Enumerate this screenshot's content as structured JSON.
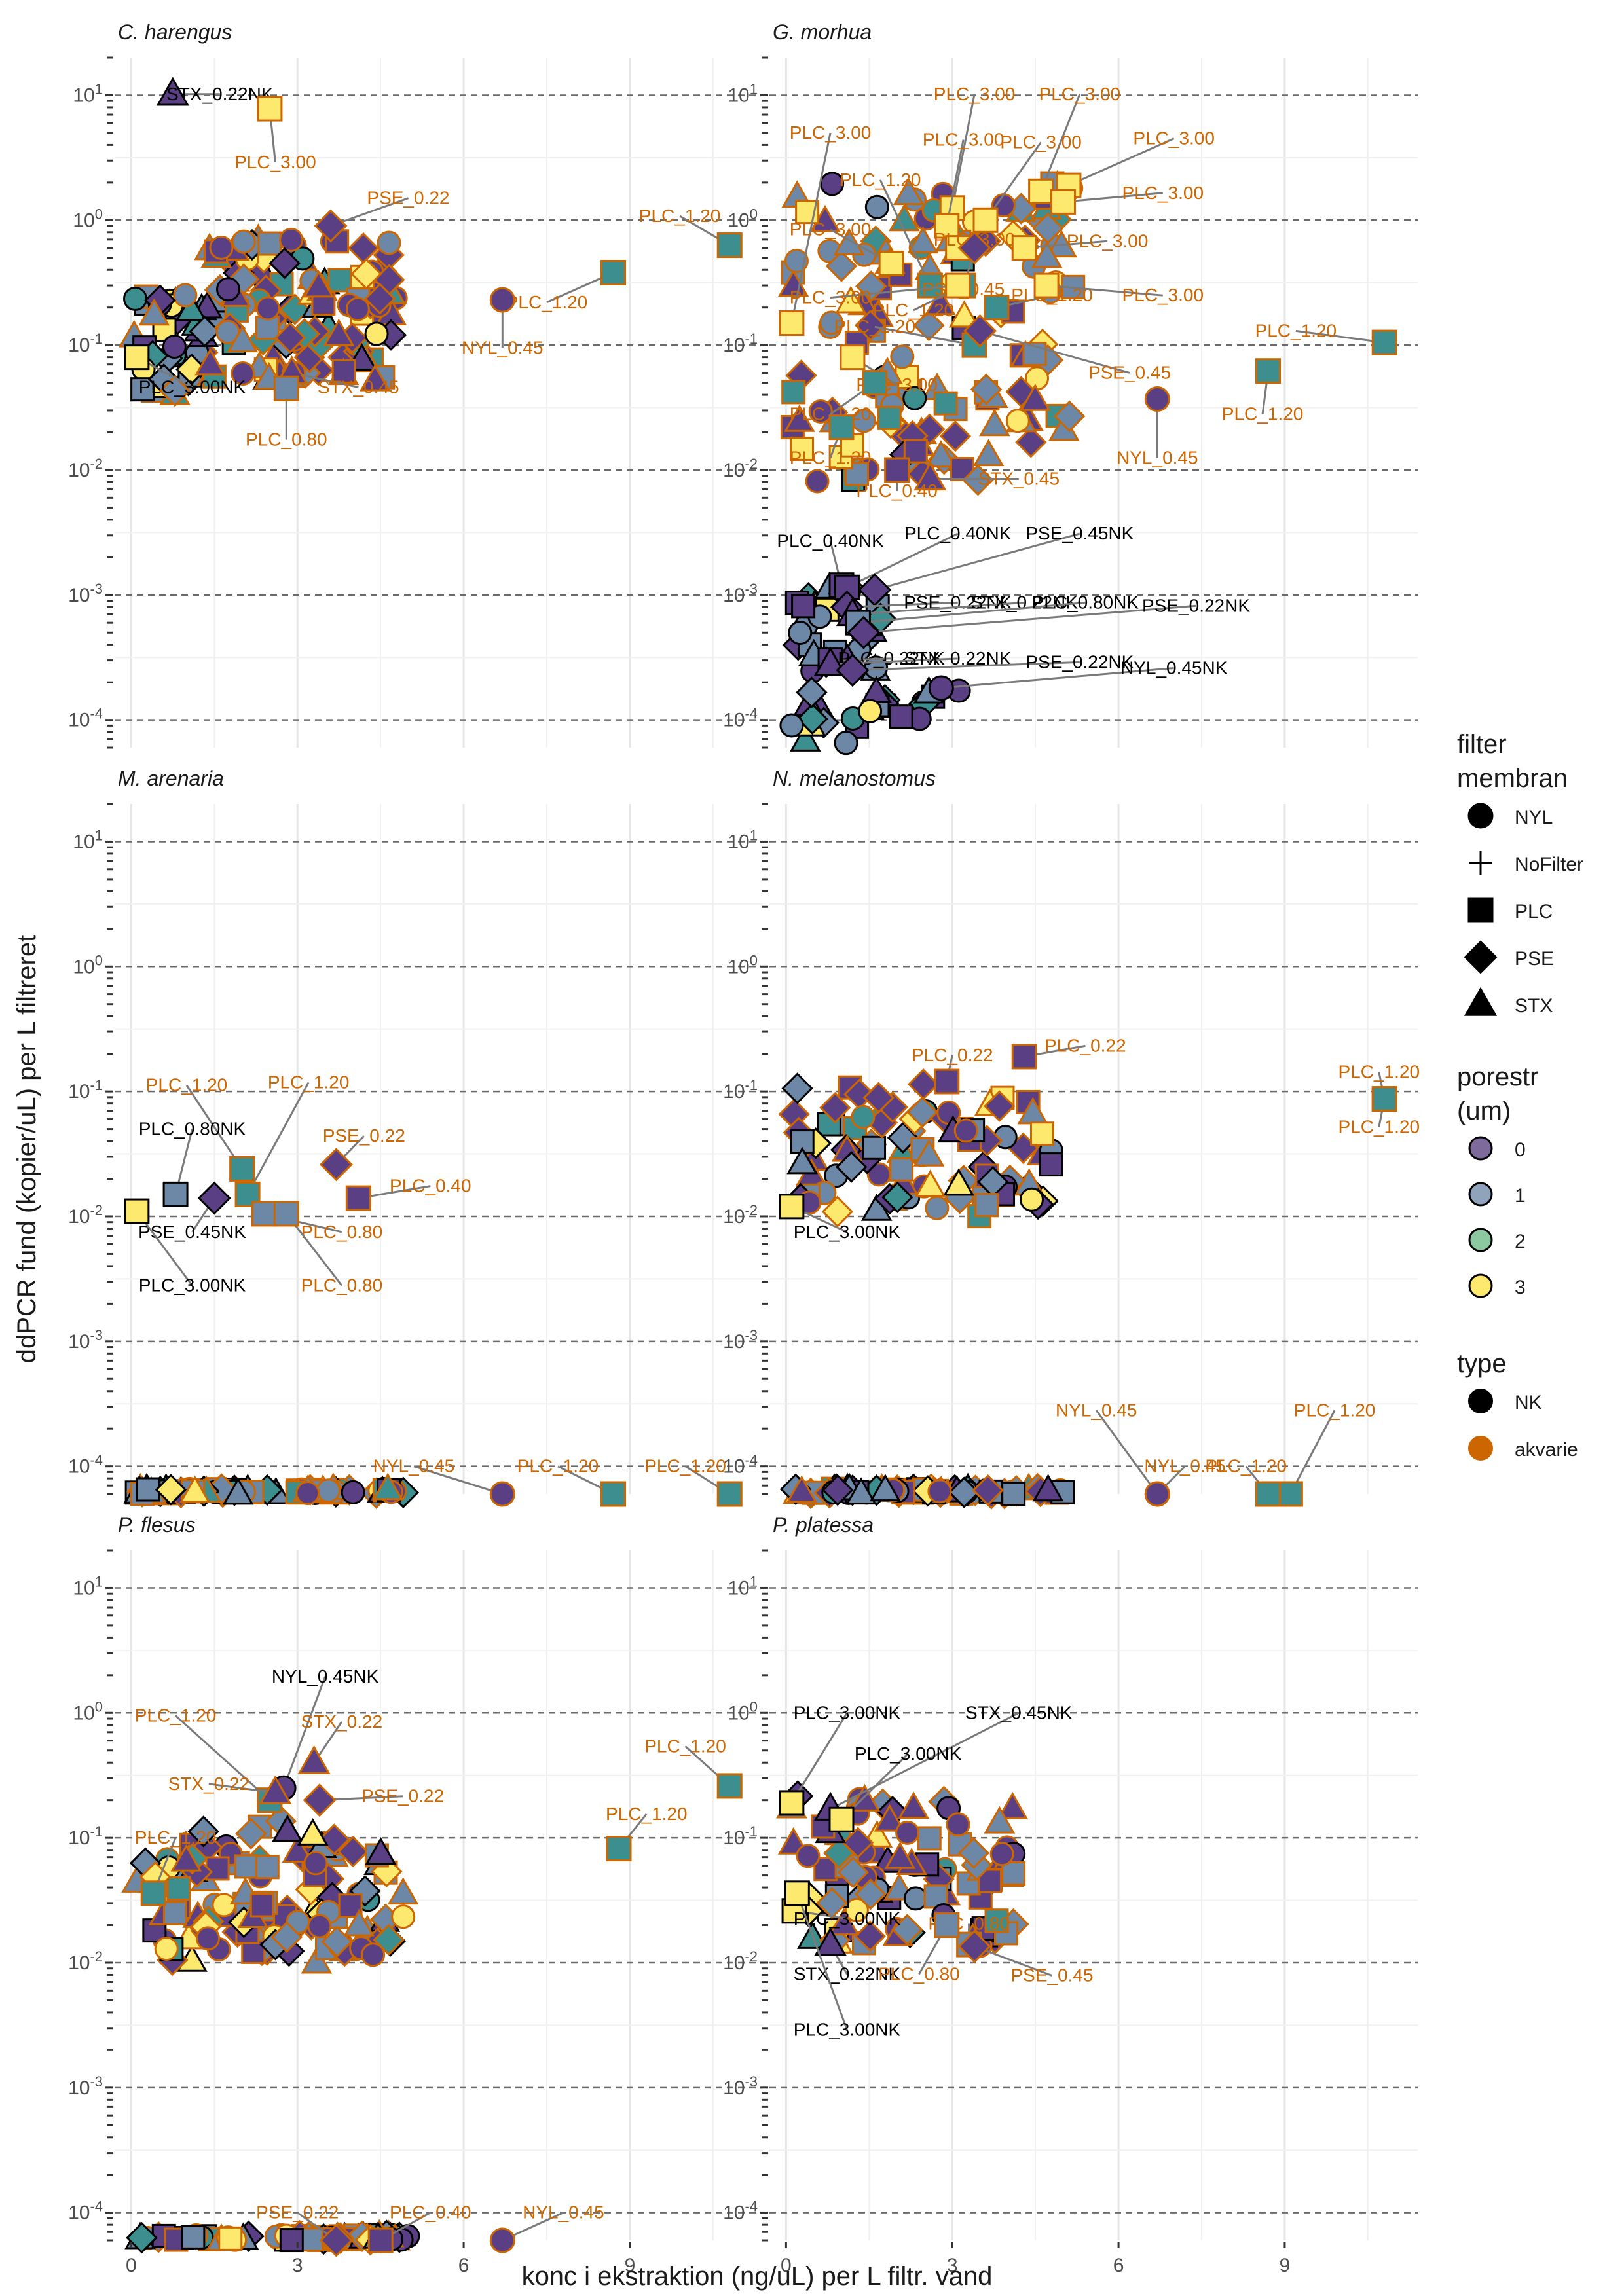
{
  "chart_data": {
    "type": "scatter",
    "xlabel": "konc i ekstraktion (ng/uL) per L filtr. vand",
    "ylabel": "ddPCR fund (kopier/uL) per L filtreret",
    "x_ticks": [
      "0",
      "3",
      "6",
      "9"
    ],
    "x_tick_values": [
      0,
      3,
      6,
      9
    ],
    "xlim": [
      -0.3,
      11.4
    ],
    "y_scale": "log10",
    "ylim": [
      6e-05,
      20
    ],
    "y_ticks": [
      {
        "value": 0.0001,
        "base": "10",
        "exp": "-4"
      },
      {
        "value": 0.001,
        "base": "10",
        "exp": "-3"
      },
      {
        "value": 0.01,
        "base": "10",
        "exp": "-2"
      },
      {
        "value": 0.1,
        "base": "10",
        "exp": "-1"
      },
      {
        "value": 1,
        "base": "10",
        "exp": "0"
      },
      {
        "value": 10,
        "base": "10",
        "exp": "1"
      }
    ],
    "reference_lines_y": [
      0.0001,
      0.001,
      0.01,
      0.1,
      1,
      10
    ],
    "grid": true,
    "legend_position": "right",
    "legend": {
      "shape": {
        "title_lines": [
          "filter",
          "membran"
        ],
        "entries": [
          {
            "label": "NYL",
            "shape": "circle"
          },
          {
            "label": "NoFilter",
            "shape": "plus"
          },
          {
            "label": "PLC",
            "shape": "square"
          },
          {
            "label": "PSE",
            "shape": "diamond"
          },
          {
            "label": "STX",
            "shape": "triangle"
          }
        ]
      },
      "fill": {
        "title_lines": [
          "porestr",
          "(um)"
        ],
        "entries": [
          {
            "label": "0",
            "color": "#7e6b9c"
          },
          {
            "label": "1",
            "color": "#8fa3bd"
          },
          {
            "label": "2",
            "color": "#8cc9a1"
          },
          {
            "label": "3",
            "color": "#fde96e"
          }
        ]
      },
      "outline": {
        "title_lines": [
          "type"
        ],
        "entries": [
          {
            "label": "NK",
            "color": "#000000"
          },
          {
            "label": "akvarie",
            "color": "#cc6600"
          }
        ]
      }
    },
    "colors": {
      "NK": "#000000",
      "akvarie": "#cc6600",
      "fill_0": "#5b3f84",
      "fill_1": "#6d87a6",
      "fill_2": "#3d8f8f",
      "fill_3": "#fde96e"
    },
    "facets": [
      {
        "title": "C. harengus",
        "labels": [
          {
            "text": "STX_0.22NK",
            "type": "NK",
            "x": 0.75,
            "y": 10.2,
            "lx": 1.6,
            "ly": 10.2
          },
          {
            "text": "PLC_3.00",
            "type": "akvarie",
            "x": 2.5,
            "y": 7.8,
            "lx": 2.6,
            "ly": 2.9
          },
          {
            "text": "PSE_0.22",
            "type": "akvarie",
            "x": 3.6,
            "y": 0.9,
            "lx": 5.0,
            "ly": 1.5
          },
          {
            "text": "PLC_1.20",
            "type": "akvarie",
            "x": 10.8,
            "y": 0.63,
            "lx": 9.9,
            "ly": 1.08
          },
          {
            "text": "PLC_1.20",
            "type": "akvarie",
            "x": 8.7,
            "y": 0.38,
            "lx": 7.5,
            "ly": 0.22
          },
          {
            "text": "NYL_0.45",
            "type": "akvarie",
            "x": 6.7,
            "y": 0.23,
            "lx": 6.7,
            "ly": 0.095
          },
          {
            "text": "PLC_3.00NK",
            "type": "NK",
            "x": 0.1,
            "y": 0.08,
            "lx": 1.1,
            "ly": 0.046
          },
          {
            "text": "STX_0.45",
            "type": "akvarie",
            "x": 2.9,
            "y": 0.06,
            "lx": 4.1,
            "ly": 0.046
          },
          {
            "text": "PLC_0.80",
            "type": "akvarie",
            "x": 2.8,
            "y": 0.045,
            "lx": 2.8,
            "ly": 0.0175
          }
        ]
      },
      {
        "title": "G. morhua",
        "labels": [
          {
            "text": "PLC_3.00",
            "type": "akvarie",
            "x": 3.0,
            "y": 1.25,
            "lx": 3.4,
            "ly": 10.2
          },
          {
            "text": "PLC_3.00",
            "type": "akvarie",
            "x": 4.6,
            "y": 1.7,
            "lx": 5.3,
            "ly": 10.2
          },
          {
            "text": "PLC_3.00",
            "type": "akvarie",
            "x": 0.1,
            "y": 0.15,
            "lx": 0.8,
            "ly": 5.0
          },
          {
            "text": "PLC_3.00",
            "type": "akvarie",
            "x": 2.9,
            "y": 0.9,
            "lx": 3.2,
            "ly": 4.4
          },
          {
            "text": "PLC_3.00",
            "type": "akvarie",
            "x": 3.6,
            "y": 1.0,
            "lx": 4.6,
            "ly": 4.2
          },
          {
            "text": "PLC_3.00",
            "type": "akvarie",
            "x": 5.1,
            "y": 1.9,
            "lx": 7.0,
            "ly": 4.5
          },
          {
            "text": "PLC_1.20",
            "type": "akvarie",
            "x": 2.6,
            "y": 0.3,
            "lx": 1.7,
            "ly": 2.1
          },
          {
            "text": "PLC_3.00",
            "type": "akvarie",
            "x": 5.0,
            "y": 1.4,
            "lx": 6.8,
            "ly": 1.65
          },
          {
            "text": "PLC_3.00",
            "type": "akvarie",
            "x": 1.9,
            "y": 0.45,
            "lx": 0.8,
            "ly": 0.84
          },
          {
            "text": "PLC_3.00",
            "type": "akvarie",
            "x": 3.1,
            "y": 0.6,
            "lx": 3.4,
            "ly": 0.7
          },
          {
            "text": "PLC_3.00",
            "type": "akvarie",
            "x": 4.3,
            "y": 0.6,
            "lx": 5.8,
            "ly": 0.68
          },
          {
            "text": "PSE_0.45",
            "type": "akvarie",
            "x": 3.4,
            "y": 0.6,
            "lx": 3.2,
            "ly": 0.28
          },
          {
            "text": "PLC_1.20",
            "type": "akvarie",
            "x": 3.2,
            "y": 0.3,
            "lx": 2.3,
            "ly": 0.19
          },
          {
            "text": "PLC_3.00",
            "type": "akvarie",
            "x": 3.1,
            "y": 0.3,
            "lx": 0.8,
            "ly": 0.24
          },
          {
            "text": "PLC_1.20",
            "type": "akvarie",
            "x": 3.8,
            "y": 0.2,
            "lx": 4.8,
            "ly": 0.25
          },
          {
            "text": "PLC_3.00",
            "type": "akvarie",
            "x": 4.7,
            "y": 0.3,
            "lx": 6.8,
            "ly": 0.25
          },
          {
            "text": "PLC_1.20",
            "type": "akvarie",
            "x": 10.8,
            "y": 0.105,
            "lx": 9.2,
            "ly": 0.13
          },
          {
            "text": "PLC_1.20",
            "type": "akvarie",
            "x": 3.4,
            "y": 0.1,
            "lx": 1.6,
            "ly": 0.14
          },
          {
            "text": "PSE_0.45",
            "type": "akvarie",
            "x": 3.5,
            "y": 0.13,
            "lx": 6.2,
            "ly": 0.06
          },
          {
            "text": "PLC_3.00",
            "type": "akvarie",
            "x": 1.2,
            "y": 0.08,
            "lx": 2.0,
            "ly": 0.048
          },
          {
            "text": "PLC_1.20",
            "type": "akvarie",
            "x": 1.6,
            "y": 0.05,
            "lx": 0.8,
            "ly": 0.028
          },
          {
            "text": "PLC_1.20",
            "type": "akvarie",
            "x": 8.7,
            "y": 0.062,
            "lx": 8.6,
            "ly": 0.028
          },
          {
            "text": "NYL_0.45",
            "type": "akvarie",
            "x": 6.7,
            "y": 0.037,
            "lx": 6.7,
            "ly": 0.0125
          },
          {
            "text": "PLC_1.20",
            "type": "akvarie",
            "x": 1.0,
            "y": 0.022,
            "lx": 0.8,
            "ly": 0.0125
          },
          {
            "text": "STX_0.45",
            "type": "akvarie",
            "x": 2.6,
            "y": 0.0085,
            "lx": 4.2,
            "ly": 0.0085
          },
          {
            "text": "PLC_0.40",
            "type": "akvarie",
            "x": 2.0,
            "y": 0.01,
            "lx": 2.0,
            "ly": 0.0068
          },
          {
            "text": "PLC_0.40NK",
            "type": "NK",
            "x": 1.0,
            "y": 0.0012,
            "lx": 0.8,
            "ly": 0.0027
          },
          {
            "text": "PLC_0.40NK",
            "type": "NK",
            "x": 1.1,
            "y": 0.00115,
            "lx": 3.1,
            "ly": 0.0031
          },
          {
            "text": "PSE_0.45NK",
            "type": "NK",
            "x": 1.6,
            "y": 0.0011,
            "lx": 5.3,
            "ly": 0.0031
          },
          {
            "text": "PSE_0.22NK",
            "type": "NK",
            "x": 1.1,
            "y": 0.0008,
            "lx": 3.1,
            "ly": 0.00087
          },
          {
            "text": "STX_0.22NK",
            "type": "NK",
            "x": 1.2,
            "y": 0.0007,
            "lx": 4.3,
            "ly": 0.00087
          },
          {
            "text": "PLC_0.80NK",
            "type": "NK",
            "x": 1.3,
            "y": 0.0006,
            "lx": 5.4,
            "ly": 0.00087
          },
          {
            "text": "PSE_0.22NK",
            "type": "NK",
            "x": 1.4,
            "y": 0.0005,
            "lx": 7.4,
            "ly": 0.00082
          },
          {
            "text": "PLC_0.22NK",
            "type": "NK",
            "x": 0.8,
            "y": 0.0003,
            "lx": 1.9,
            "ly": 0.00031
          },
          {
            "text": "STX_0.22NK",
            "type": "NK",
            "x": 0.8,
            "y": 0.00028,
            "lx": 3.1,
            "ly": 0.00031
          },
          {
            "text": "PSE_0.22NK",
            "type": "NK",
            "x": 1.2,
            "y": 0.00025,
            "lx": 5.3,
            "ly": 0.00029
          },
          {
            "text": "NYL_0.45NK",
            "type": "NK",
            "x": 2.8,
            "y": 0.00018,
            "lx": 7.0,
            "ly": 0.00026
          }
        ]
      },
      {
        "title": "M. arenaria",
        "labels": [
          {
            "text": "PLC_1.20",
            "type": "akvarie",
            "x": 2.0,
            "y": 0.024,
            "lx": 1.0,
            "ly": 0.112
          },
          {
            "text": "PLC_1.20",
            "type": "akvarie",
            "x": 2.1,
            "y": 0.015,
            "lx": 3.2,
            "ly": 0.118
          },
          {
            "text": "PLC_0.80NK",
            "type": "NK",
            "x": 0.8,
            "y": 0.015,
            "lx": 1.1,
            "ly": 0.05
          },
          {
            "text": "PSE_0.22",
            "type": "akvarie",
            "x": 3.7,
            "y": 0.026,
            "lx": 4.2,
            "ly": 0.044
          },
          {
            "text": "PLC_0.40",
            "type": "akvarie",
            "x": 4.1,
            "y": 0.014,
            "lx": 5.4,
            "ly": 0.0175
          },
          {
            "text": "PSE_0.45NK",
            "type": "NK",
            "x": 1.5,
            "y": 0.014,
            "lx": 1.1,
            "ly": 0.0075
          },
          {
            "text": "PLC_0.80",
            "type": "akvarie",
            "x": 2.4,
            "y": 0.0105,
            "lx": 3.8,
            "ly": 0.0075
          },
          {
            "text": "PLC_3.00NK",
            "type": "NK",
            "x": 0.1,
            "y": 0.011,
            "lx": 1.1,
            "ly": 0.0028
          },
          {
            "text": "PLC_0.80",
            "type": "akvarie",
            "x": 2.8,
            "y": 0.0105,
            "lx": 3.8,
            "ly": 0.0028
          },
          {
            "text": "NYL_0.45",
            "type": "akvarie",
            "x": 6.7,
            "y": 6e-05,
            "lx": 5.1,
            "ly": 0.0001
          },
          {
            "text": "PLC_1.20",
            "type": "akvarie",
            "x": 8.7,
            "y": 6e-05,
            "lx": 7.7,
            "ly": 0.0001
          },
          {
            "text": "PLC_1.20",
            "type": "akvarie",
            "x": 10.8,
            "y": 6e-05,
            "lx": 10.0,
            "ly": 0.0001
          }
        ]
      },
      {
        "title": "N. melanostomus",
        "labels": [
          {
            "text": "PLC_0.22",
            "type": "akvarie",
            "x": 2.9,
            "y": 0.12,
            "lx": 3.0,
            "ly": 0.195
          },
          {
            "text": "PLC_0.22",
            "type": "akvarie",
            "x": 4.3,
            "y": 0.19,
            "lx": 5.4,
            "ly": 0.232
          },
          {
            "text": "PLC_1.20",
            "type": "akvarie",
            "x": 10.8,
            "y": 0.087,
            "lx": 10.7,
            "ly": 0.143
          },
          {
            "text": "PLC_1.20",
            "type": "akvarie",
            "x": 10.8,
            "y": 0.087,
            "lx": 10.7,
            "ly": 0.052
          },
          {
            "text": "PLC_3.00NK",
            "type": "NK",
            "x": 0.1,
            "y": 0.012,
            "lx": 1.1,
            "ly": 0.0075
          },
          {
            "text": "NYL_0.45",
            "type": "akvarie",
            "x": 6.7,
            "y": 6e-05,
            "lx": 5.6,
            "ly": 0.00028
          },
          {
            "text": "PLC_1.20",
            "type": "akvarie",
            "x": 9.1,
            "y": 6e-05,
            "lx": 9.9,
            "ly": 0.00028
          },
          {
            "text": "NYL_0.45",
            "type": "akvarie",
            "x": 6.7,
            "y": 6e-05,
            "lx": 7.2,
            "ly": 0.0001
          },
          {
            "text": "PLC_1.20",
            "type": "akvarie",
            "x": 8.7,
            "y": 6e-05,
            "lx": 8.3,
            "ly": 0.0001
          }
        ]
      },
      {
        "title": "P. flesus",
        "labels": [
          {
            "text": "NYL_0.45NK",
            "type": "NK",
            "x": 2.75,
            "y": 0.25,
            "lx": 3.5,
            "ly": 1.95
          },
          {
            "text": "PLC_1.20",
            "type": "akvarie",
            "x": 2.5,
            "y": 0.2,
            "lx": 0.8,
            "ly": 0.95
          },
          {
            "text": "STX_0.22",
            "type": "akvarie",
            "x": 3.3,
            "y": 0.4,
            "lx": 3.8,
            "ly": 0.85
          },
          {
            "text": "STX_0.22",
            "type": "akvarie",
            "x": 2.6,
            "y": 0.23,
            "lx": 1.4,
            "ly": 0.27
          },
          {
            "text": "PSE_0.22",
            "type": "akvarie",
            "x": 3.4,
            "y": 0.2,
            "lx": 4.9,
            "ly": 0.215
          },
          {
            "text": "PLC_1.20",
            "type": "akvarie",
            "x": 10.8,
            "y": 0.26,
            "lx": 10.0,
            "ly": 0.54
          },
          {
            "text": "PLC_1.20",
            "type": "akvarie",
            "x": 8.8,
            "y": 0.082,
            "lx": 9.3,
            "ly": 0.155
          },
          {
            "text": "PLC_1.20",
            "type": "akvarie",
            "x": 0.4,
            "y": 0.036,
            "lx": 0.8,
            "ly": 0.1
          },
          {
            "text": "PSE_0.22",
            "type": "akvarie",
            "x": 3.7,
            "y": 6e-05,
            "lx": 3.0,
            "ly": 0.0001
          },
          {
            "text": "PLC_0.40",
            "type": "akvarie",
            "x": 4.5,
            "y": 6e-05,
            "lx": 5.4,
            "ly": 0.0001
          },
          {
            "text": "NYL_0.45",
            "type": "akvarie",
            "x": 6.7,
            "y": 6e-05,
            "lx": 7.8,
            "ly": 0.0001
          }
        ]
      },
      {
        "title": "P. platessa",
        "labels": [
          {
            "text": "PLC_3.00NK",
            "type": "NK",
            "x": 0.1,
            "y": 0.19,
            "lx": 1.1,
            "ly": 1.0
          },
          {
            "text": "STX_0.45NK",
            "type": "NK",
            "x": 0.8,
            "y": 0.17,
            "lx": 4.2,
            "ly": 1.0
          },
          {
            "text": "PLC_3.00NK",
            "type": "NK",
            "x": 1.0,
            "y": 0.14,
            "lx": 2.2,
            "ly": 0.47
          },
          {
            "text": "PLC_3.00NK",
            "type": "NK",
            "x": 0.15,
            "y": 0.026,
            "lx": 1.1,
            "ly": 0.0225
          },
          {
            "text": "PLC_0.80",
            "type": "akvarie",
            "x": 3.3,
            "y": 0.014,
            "lx": 3.3,
            "ly": 0.0205
          },
          {
            "text": "STX_0.22NK",
            "type": "NK",
            "x": 0.8,
            "y": 0.014,
            "lx": 1.1,
            "ly": 0.0081
          },
          {
            "text": "PLC_0.80",
            "type": "akvarie",
            "x": 2.9,
            "y": 0.02,
            "lx": 2.4,
            "ly": 0.0081
          },
          {
            "text": "PSE_0.45",
            "type": "akvarie",
            "x": 3.4,
            "y": 0.0135,
            "lx": 4.8,
            "ly": 0.0079
          },
          {
            "text": "PLC_3.00NK",
            "type": "NK",
            "x": 0.2,
            "y": 0.036,
            "lx": 1.1,
            "ly": 0.0029
          }
        ]
      }
    ]
  }
}
